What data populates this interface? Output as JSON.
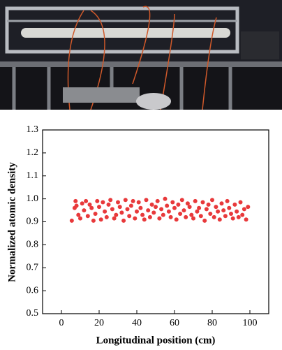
{
  "chart_data": {
    "type": "scatter",
    "x_label": "Longitudinal position (cm)",
    "y_label": "Normalized atomic density",
    "color": "#e8393b",
    "x": [
      5.5,
      7,
      7.5,
      8,
      9,
      10,
      11,
      12,
      13,
      14,
      15,
      16,
      17,
      18,
      19,
      20,
      21,
      22,
      23,
      24,
      25,
      26,
      27,
      28,
      29,
      30,
      31,
      32,
      33,
      34,
      35,
      36,
      37,
      38,
      39,
      40,
      41,
      42,
      43,
      44,
      45,
      46,
      47,
      48,
      49,
      50,
      51,
      52,
      53,
      54,
      55,
      56,
      57,
      58,
      59,
      60,
      61,
      62,
      63,
      64,
      65,
      66,
      67,
      68,
      69,
      70,
      71,
      72,
      73,
      74,
      75,
      76,
      77,
      78,
      79,
      80,
      81,
      82,
      83,
      84,
      85,
      86,
      87,
      88,
      89,
      90,
      91,
      92,
      93,
      94,
      95,
      96,
      97,
      98,
      99
    ],
    "y": [
      0.905,
      0.96,
      0.99,
      0.97,
      0.93,
      0.915,
      0.98,
      0.95,
      0.99,
      0.925,
      0.975,
      0.96,
      0.905,
      0.935,
      0.99,
      0.965,
      0.91,
      0.985,
      0.945,
      0.92,
      0.975,
      0.995,
      0.955,
      0.915,
      0.93,
      0.985,
      0.965,
      0.94,
      0.905,
      0.995,
      0.955,
      0.925,
      0.97,
      0.99,
      0.915,
      0.945,
      0.985,
      0.96,
      0.93,
      0.91,
      0.995,
      0.95,
      0.92,
      0.975,
      0.94,
      0.965,
      0.99,
      0.915,
      0.955,
      0.93,
      1.0,
      0.97,
      0.945,
      0.92,
      0.985,
      0.96,
      0.91,
      0.975,
      0.935,
      0.995,
      0.95,
      0.92,
      0.98,
      0.965,
      0.93,
      0.915,
      0.99,
      0.945,
      0.96,
      0.925,
      0.985,
      0.905,
      0.955,
      0.975,
      0.935,
      0.995,
      0.92,
      0.965,
      0.945,
      0.91,
      0.98,
      0.95,
      0.925,
      0.99,
      0.96,
      0.935,
      0.915,
      0.975,
      0.945,
      0.92,
      0.985,
      0.93,
      0.955,
      0.91,
      0.965
    ],
    "xlim": [
      -10,
      110
    ],
    "xticks": [
      0,
      20,
      40,
      60,
      80,
      100
    ],
    "ylim": [
      0.5,
      1.3
    ],
    "yticks": [
      0.5,
      0.6,
      0.7,
      0.8,
      0.9,
      {
        "value": 1,
        "label": "1.0"
      },
      1.1,
      1.2,
      1.3
    ]
  }
}
